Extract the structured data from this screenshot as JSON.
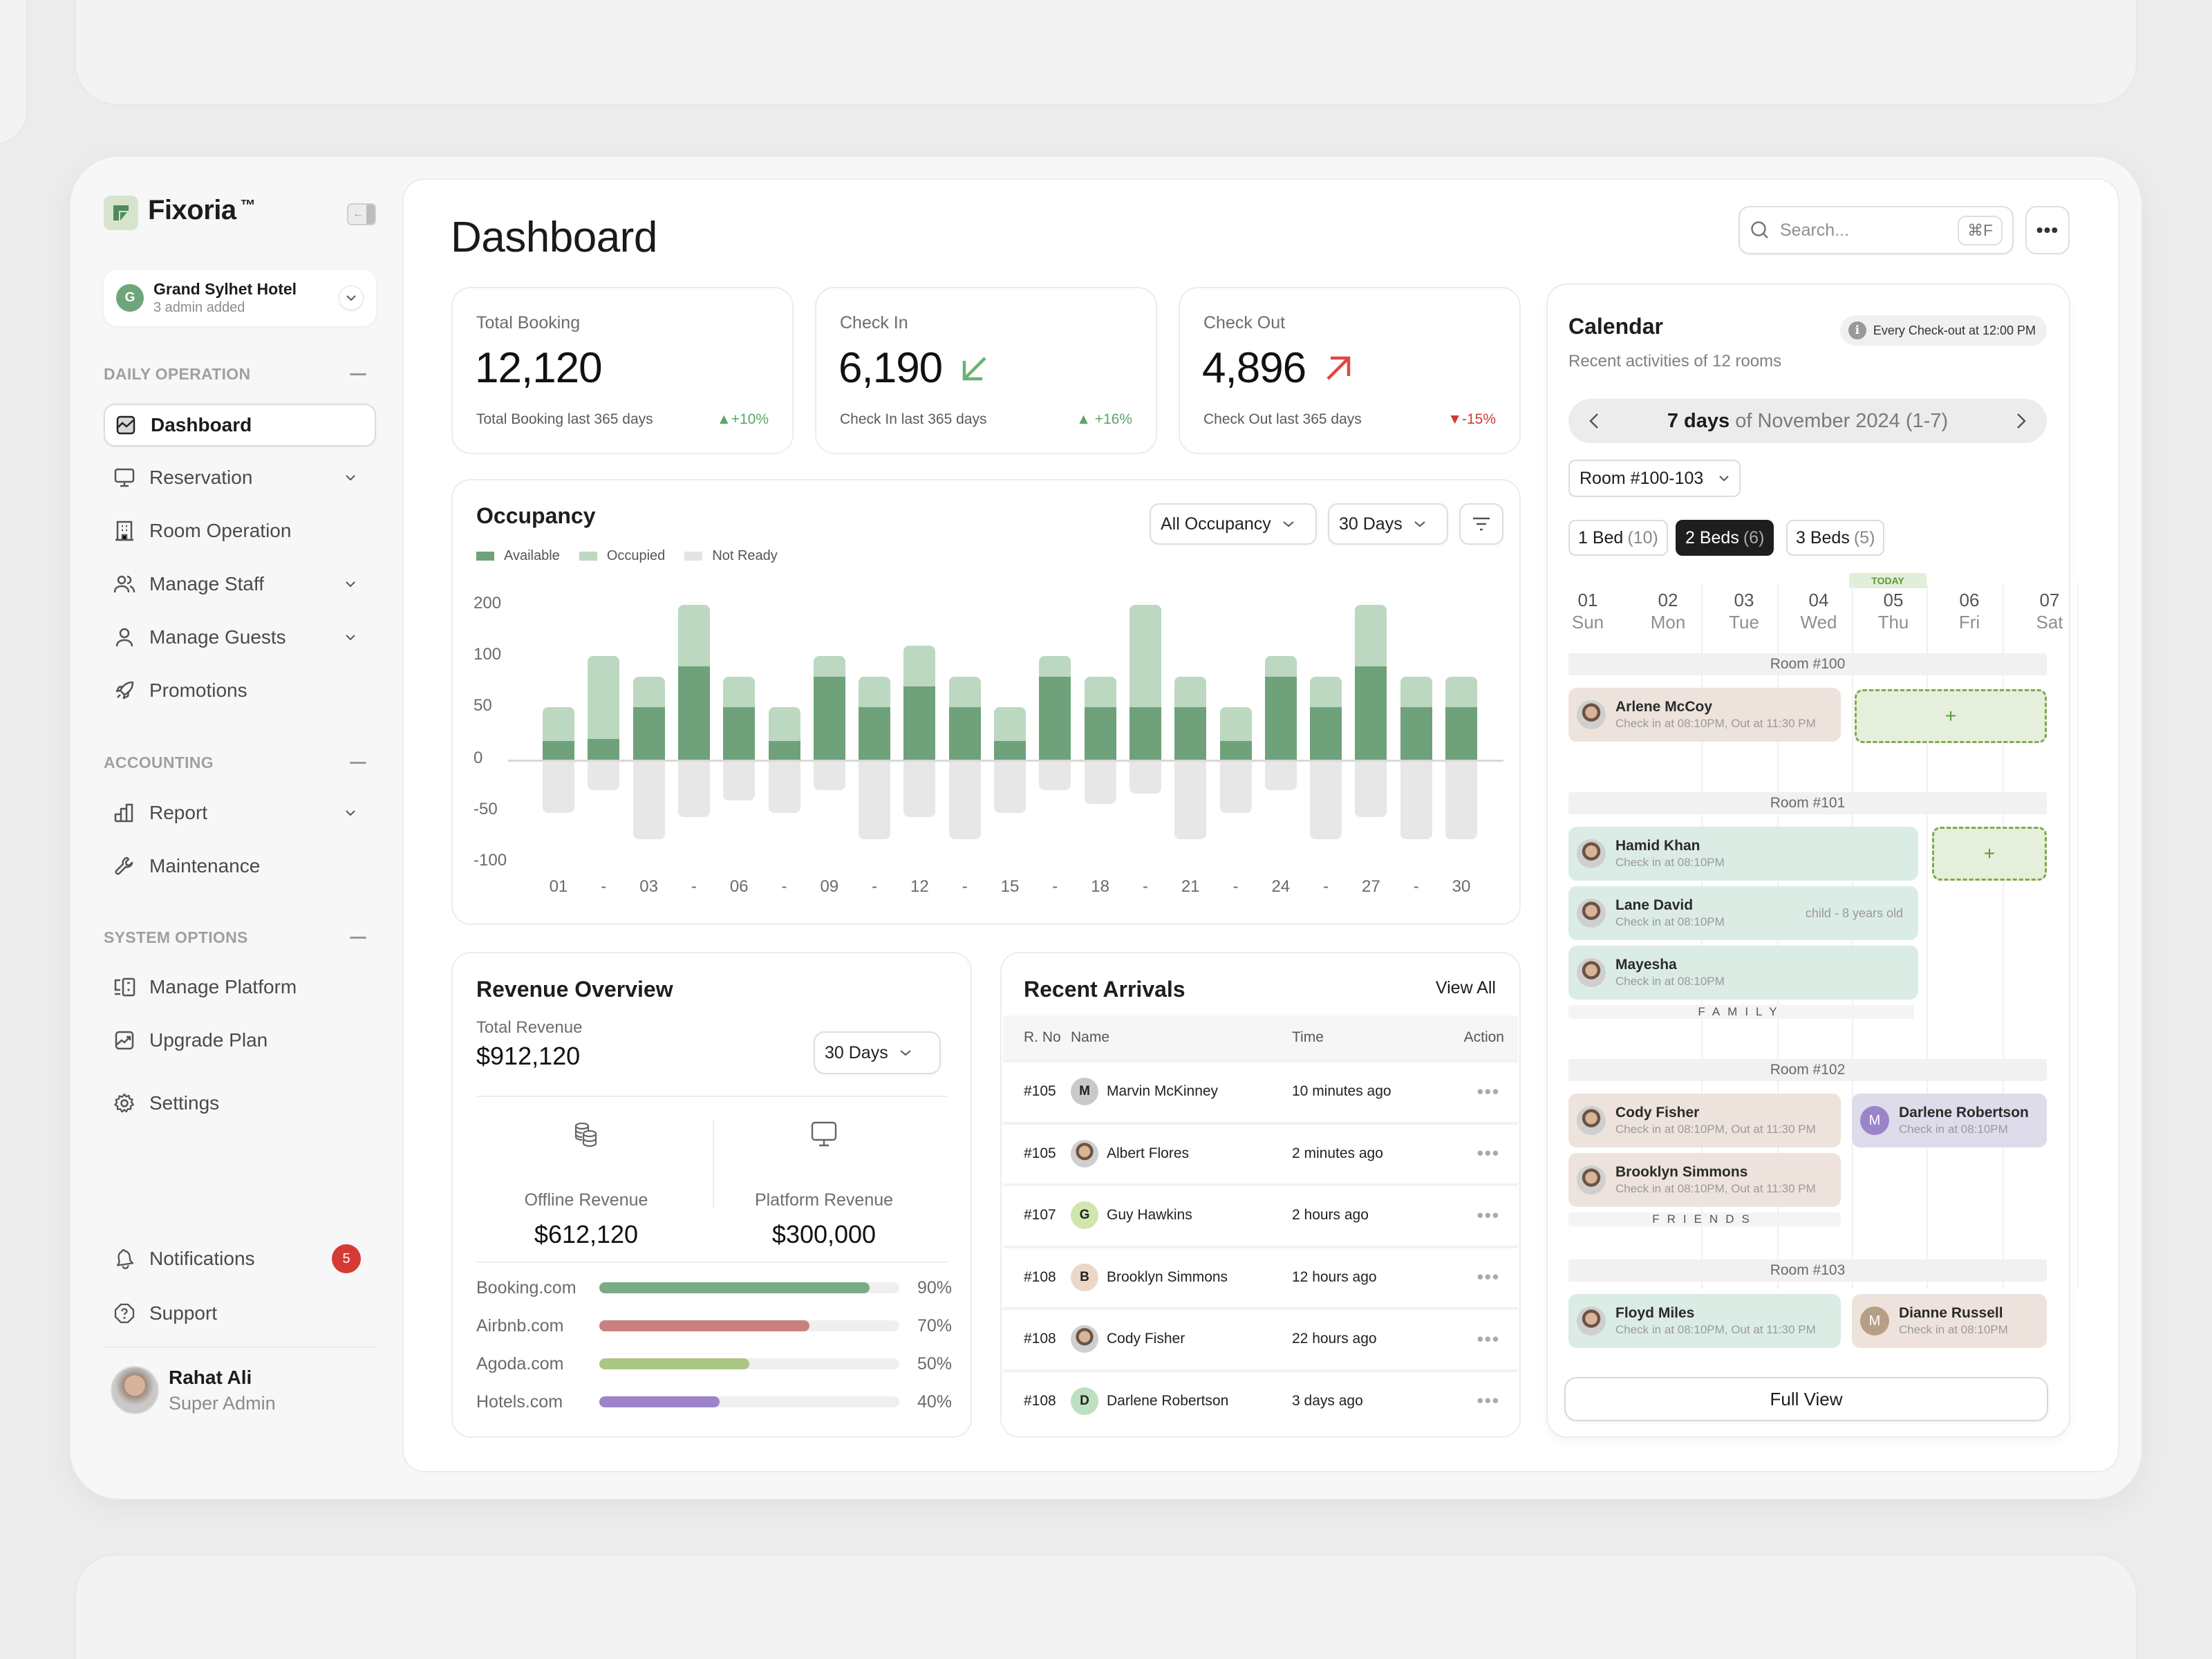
{
  "app": {
    "brand": "Fixoria",
    "tm": "™"
  },
  "hotel": {
    "initial": "G",
    "name": "Grand Sylhet Hotel",
    "subtitle": "3 admin added"
  },
  "sidebar": {
    "sections": [
      {
        "title": "DAILY OPERATION",
        "items": [
          {
            "label": "Dashboard",
            "icon": "chart-icon",
            "active": true
          },
          {
            "label": "Reservation",
            "icon": "monitor-icon",
            "expandable": true
          },
          {
            "label": "Room Operation",
            "icon": "building-icon"
          },
          {
            "label": "Manage Staff",
            "icon": "users-icon",
            "expandable": true
          },
          {
            "label": "Manage Guests",
            "icon": "user-icon",
            "expandable": true
          },
          {
            "label": "Promotions",
            "icon": "rocket-icon"
          }
        ]
      },
      {
        "title": "ACCOUNTING",
        "items": [
          {
            "label": "Report",
            "icon": "bar-chart-icon",
            "expandable": true
          },
          {
            "label": "Maintenance",
            "icon": "wrench-icon"
          }
        ]
      },
      {
        "title": "SYSTEM OPTIONS",
        "items": [
          {
            "label": "Manage Platform",
            "icon": "devices-icon"
          },
          {
            "label": "Upgrade Plan",
            "icon": "trend-icon"
          },
          {
            "label": "Settings",
            "icon": "gear-icon"
          }
        ]
      }
    ],
    "bottom": [
      {
        "label": "Notifications",
        "icon": "bell-icon",
        "badge": "5"
      },
      {
        "label": "Support",
        "icon": "help-icon"
      }
    ],
    "user": {
      "name": "Rahat Ali",
      "role": "Super Admin"
    }
  },
  "header": {
    "title": "Dashboard",
    "search_placeholder": "Search...",
    "search_shortcut": "⌘F",
    "more": "•••"
  },
  "stats": [
    {
      "label": "Total Booking",
      "value": "12,120",
      "footer": "Total Booking last 365 days",
      "delta": "▲+10%",
      "trend": "up"
    },
    {
      "label": "Check In",
      "value": "6,190",
      "footer": "Check In last 365 days",
      "delta": "▲ +16%",
      "trend": "up"
    },
    {
      "label": "Check Out",
      "value": "4,896",
      "footer": "Check Out last 365 days",
      "delta": "▼-15%",
      "trend": "down"
    }
  ],
  "occupancy": {
    "title": "Occupancy",
    "filter_type": "All Occupancy",
    "filter_range": "30 Days",
    "colors": {
      "available": "#6fa27a",
      "occupied": "#bcd8c1",
      "not_ready": "#e6e7e6"
    }
  },
  "chart_data": {
    "type": "bar",
    "title": "Occupancy",
    "stacked": true,
    "legend": [
      "Available",
      "Occupied",
      "Not Ready"
    ],
    "legend_position": "top-left",
    "y_ticks": [
      "200",
      "100",
      "50",
      "0",
      "-50",
      "-100"
    ],
    "y_scale_note": "piecewise: ticks evenly spaced",
    "x_ticks": [
      "01",
      "-",
      "03",
      "-",
      "06",
      "-",
      "09",
      "-",
      "12",
      "-",
      "15",
      "-",
      "18",
      "-",
      "21",
      "-",
      "24",
      "-",
      "27",
      "-",
      "30"
    ],
    "categories": [
      "b1",
      "b2",
      "b3",
      "b4",
      "b5",
      "b6",
      "b7",
      "b8",
      "b9",
      "b10",
      "b11",
      "b12",
      "b13",
      "b14",
      "b15",
      "b16",
      "b17",
      "b18",
      "b19",
      "b20",
      "b21"
    ],
    "series": [
      {
        "name": "Available",
        "values": [
          18,
          20,
          50,
          90,
          50,
          18,
          80,
          50,
          70,
          50,
          18,
          80,
          50,
          50,
          50,
          18,
          80,
          50,
          90,
          50,
          50
        ]
      },
      {
        "name": "Occupied",
        "values": [
          32,
          80,
          30,
          110,
          30,
          32,
          20,
          30,
          50,
          30,
          32,
          20,
          30,
          150,
          30,
          32,
          20,
          30,
          110,
          30,
          30
        ]
      },
      {
        "name": "Not Ready",
        "values": [
          -52,
          -30,
          -78,
          -56,
          -40,
          -52,
          -30,
          -78,
          -56,
          -78,
          -52,
          -30,
          -43,
          -33,
          -78,
          -52,
          -30,
          -78,
          -56,
          -78,
          -78
        ]
      }
    ],
    "grid": false
  },
  "revenue": {
    "title": "Revenue Overview",
    "total_label": "Total Revenue",
    "total": "$912,120",
    "range": "30 Days",
    "offline_label": "Offline Revenue",
    "offline": "$612,120",
    "platform_label": "Platform Revenue",
    "platform": "$300,000",
    "platforms": [
      {
        "name": "Booking.com",
        "pct": "90%",
        "value": 90,
        "color": "#7aab86"
      },
      {
        "name": "Airbnb.com",
        "pct": "70%",
        "value": 70,
        "color": "#c8817e"
      },
      {
        "name": "Agoda.com",
        "pct": "50%",
        "value": 50,
        "color": "#abc784"
      },
      {
        "name": "Hotels.com",
        "pct": "40%",
        "value": 40,
        "color": "#9d84c8"
      }
    ]
  },
  "arrivals": {
    "title": "Recent Arrivals",
    "view_all": "View All",
    "columns": [
      "R. No",
      "Name",
      "Time",
      "Action"
    ],
    "rows": [
      {
        "room": "#105",
        "initial": "M",
        "name": "Marvin McKinney",
        "time": "10 minutes ago",
        "av": "#c9c9c9"
      },
      {
        "room": "#105",
        "initial": "",
        "name": "Albert Flores",
        "time": "2 minutes ago",
        "av": "photo"
      },
      {
        "room": "#107",
        "initial": "G",
        "name": "Guy Hawkins",
        "time": "2 hours ago",
        "av": "#cfe6ad"
      },
      {
        "room": "#108",
        "initial": "B",
        "name": "Brooklyn Simmons",
        "time": "12 hours ago",
        "av": "#ecd7c7"
      },
      {
        "room": "#108",
        "initial": "",
        "name": "Cody Fisher",
        "time": "22 hours ago",
        "av": "photo"
      },
      {
        "room": "#108",
        "initial": "D",
        "name": "Darlene Robertson",
        "time": "3 days ago",
        "av": "#bde0c3"
      }
    ],
    "action": "•••"
  },
  "calendar": {
    "title": "Calendar",
    "note": "Every Check-out  at 12:00 PM",
    "subtitle": "Recent activities of 12 rooms",
    "range_bold": "7 days",
    "range_rest": " of November 2024 (1-7)",
    "room_filter": "Room #100-103",
    "bed_filters": [
      {
        "label": "1 Bed",
        "count": "(10)",
        "active": false
      },
      {
        "label": "2 Beds",
        "count": "(6)",
        "active": true
      },
      {
        "label": "3 Beds",
        "count": "(5)",
        "active": false
      }
    ],
    "today_label": "TODAY",
    "days": [
      {
        "num": "01",
        "wd": "Sun"
      },
      {
        "num": "02",
        "wd": "Mon"
      },
      {
        "num": "03",
        "wd": "Tue"
      },
      {
        "num": "04",
        "wd": "Wed"
      },
      {
        "num": "05",
        "wd": "Thu"
      },
      {
        "num": "06",
        "wd": "Fri"
      },
      {
        "num": "07",
        "wd": "Sat"
      }
    ],
    "rooms": [
      {
        "name": "Room #100",
        "bookings": [
          {
            "guest": "Arlene McCoy",
            "detail": "Check in at 08:10PM, Out at 11:30 PM"
          }
        ]
      },
      {
        "name": "Room #101",
        "group": "FAMILY",
        "bookings": [
          {
            "guest": "Hamid Khan",
            "detail": "Check in at 08:10PM"
          },
          {
            "guest": "Lane David",
            "detail": "Check in at 08:10PM",
            "extra": "child - 8 years old"
          },
          {
            "guest": "Mayesha",
            "detail": "Check in at 08:10PM"
          }
        ]
      },
      {
        "name": "Room #102",
        "group": "FRIENDS",
        "bookings": [
          {
            "guest": "Cody Fisher",
            "detail": "Check in at 08:10PM, Out at 11:30 PM"
          },
          {
            "guest": "Brooklyn Simmons",
            "detail": "Check in at 08:10PM, Out at 11:30 PM"
          },
          {
            "guest": "Darlene Robertson",
            "initial": "M",
            "detail": "Check in at 08:10PM"
          }
        ]
      },
      {
        "name": "Room #103",
        "bookings": [
          {
            "guest": "Floyd Miles",
            "detail": "Check in at 08:10PM, Out at 11:30 PM"
          },
          {
            "guest": "Dianne Russell",
            "initial": "M",
            "detail": "Check in at 08:10PM"
          }
        ]
      }
    ],
    "add_label": "+",
    "full_view": "Full View"
  }
}
